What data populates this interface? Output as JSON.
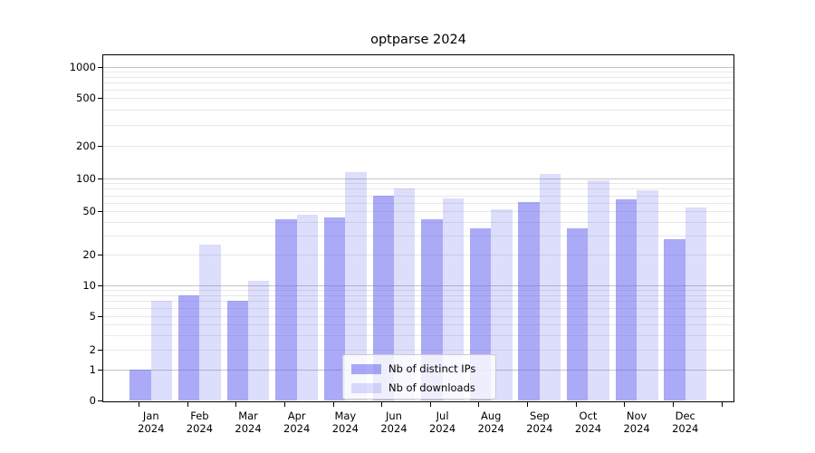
{
  "chart_data": {
    "type": "bar",
    "title": "optparse 2024",
    "categories": [
      "Jan",
      "Feb",
      "Mar",
      "Apr",
      "May",
      "Jun",
      "Jul",
      "Aug",
      "Sep",
      "Oct",
      "Nov",
      "Dec"
    ],
    "x_tick_year_line": "2024",
    "series": [
      {
        "name": "Nb of distinct IPs",
        "color": "rgba(85,85,238,0.5)",
        "values": [
          1,
          8,
          7,
          42,
          44,
          69,
          42,
          35,
          61,
          35,
          64,
          28
        ]
      },
      {
        "name": "Nb of downloads",
        "color": "rgba(85,85,238,0.2)",
        "values": [
          7,
          25,
          11,
          47,
          115,
          80,
          65,
          52,
          110,
          95,
          78,
          54
        ]
      }
    ],
    "y_ticks": [
      0,
      1,
      2,
      5,
      10,
      20,
      50,
      100,
      200,
      500,
      1000
    ],
    "ylim": [
      0,
      1300
    ],
    "y_scale": "symlog",
    "grid": true,
    "legend_position": "lower center"
  }
}
